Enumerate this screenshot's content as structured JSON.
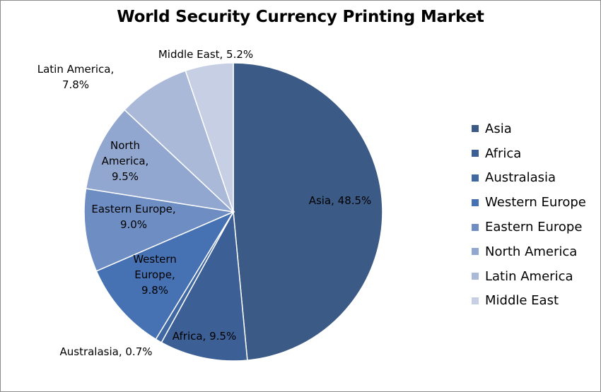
{
  "chart_data": {
    "type": "pie",
    "title": "World Security Currency Printing Market",
    "slices": [
      {
        "name": "Asia",
        "value": 48.5,
        "label_text": "Asia, 48.5%",
        "color": "#3b5a85"
      },
      {
        "name": "Africa",
        "value": 9.5,
        "label_text": "Africa, 9.5%",
        "color": "#3c5f96"
      },
      {
        "name": "Australasia",
        "value": 0.7,
        "label_text": "Australasia, 0.7%",
        "color": "#4068a3"
      },
      {
        "name": "Western Europe",
        "value": 9.8,
        "label_text": "Western\nEurope,\n9.8%",
        "color": "#4672b4"
      },
      {
        "name": "Eastern Europe",
        "value": 9.0,
        "label_text": "Eastern Europe,\n9.0%",
        "color": "#6e8ec3"
      },
      {
        "name": "North America",
        "value": 9.5,
        "label_text": "North\nAmerica,\n9.5%",
        "color": "#92a7cf"
      },
      {
        "name": "Latin America",
        "value": 7.8,
        "label_text": "Latin America,\n7.8%",
        "color": "#aab9d8"
      },
      {
        "name": "Middle East",
        "value": 5.2,
        "label_text": "Middle East, 5.2%",
        "color": "#c6cfe3"
      }
    ],
    "legend_position": "right",
    "start_angle": "12 o'clock",
    "direction": "clockwise"
  }
}
